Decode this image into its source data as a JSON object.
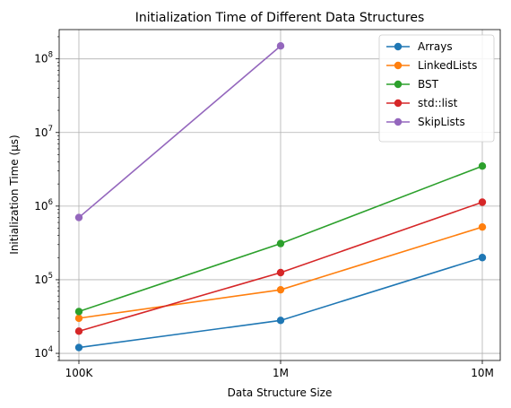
{
  "chart_data": {
    "type": "line",
    "title": "Initialization Time of Different Data Structures",
    "xlabel": "Data Structure Size",
    "ylabel": "Initialization Time (µs)",
    "categories": [
      "100K",
      "1M",
      "10M"
    ],
    "yscale": "log",
    "ylim": [
      8000,
      250000000
    ],
    "y_ticks": [
      {
        "value": 10000,
        "base": "10",
        "exp": "4"
      },
      {
        "value": 100000,
        "base": "10",
        "exp": "5"
      },
      {
        "value": 1000000,
        "base": "10",
        "exp": "6"
      },
      {
        "value": 10000000,
        "base": "10",
        "exp": "7"
      },
      {
        "value": 100000000,
        "base": "10",
        "exp": "8"
      }
    ],
    "grid": true,
    "legend_position": "top-right",
    "series": [
      {
        "name": "Arrays",
        "color": "#1f77b4",
        "values": [
          12000,
          28000,
          200000
        ]
      },
      {
        "name": "LinkedLists",
        "color": "#ff7f0e",
        "values": [
          30000,
          73000,
          520000
        ]
      },
      {
        "name": "BST",
        "color": "#2ca02c",
        "values": [
          37000,
          310000,
          3500000
        ]
      },
      {
        "name": "std::list",
        "color": "#d62728",
        "values": [
          20000,
          125000,
          1130000
        ]
      },
      {
        "name": "SkipLists",
        "color": "#9467bd",
        "values": [
          700000,
          150000000,
          null
        ]
      }
    ]
  }
}
